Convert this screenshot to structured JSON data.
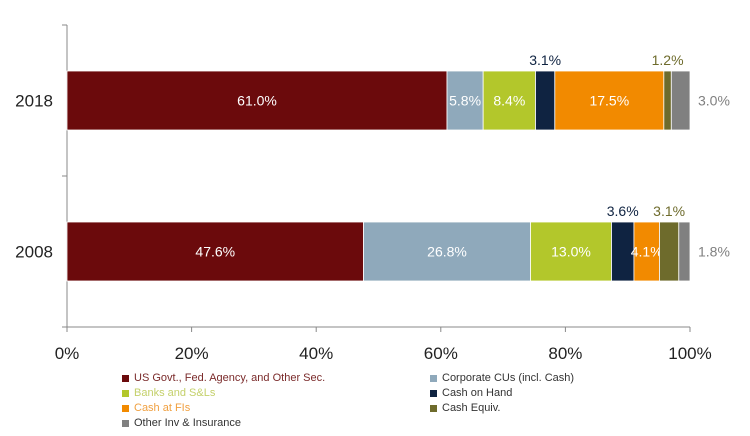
{
  "chart_data": {
    "type": "bar",
    "orientation": "horizontal",
    "stacked": true,
    "title": "",
    "xlabel": "",
    "ylabel": "",
    "xlim": [
      0,
      100
    ],
    "x_ticks": [
      "0%",
      "20%",
      "40%",
      "60%",
      "80%",
      "100%"
    ],
    "categories": [
      "2018",
      "2008"
    ],
    "series": [
      {
        "name": "US Govt., Fed. Agency, and Other Sec.",
        "color": "#6b0a0c",
        "label_color": "#6b0a0c",
        "values": [
          61.0,
          47.6
        ],
        "labels": [
          "61.0%",
          "47.6%"
        ],
        "label_pos": "inside"
      },
      {
        "name": "Corporate CUs (incl. Cash)",
        "color": "#8fa9bb",
        "label_color": "#8fa9bb",
        "values": [
          5.8,
          26.8
        ],
        "labels": [
          "5.8%",
          "26.8%"
        ],
        "label_pos": "inside"
      },
      {
        "name": "Banks and S&Ls",
        "color": "#b3c72b",
        "label_color": "#b3c72b",
        "values": [
          8.4,
          13.0
        ],
        "labels": [
          "8.4%",
          "13.0%"
        ],
        "label_pos": "inside"
      },
      {
        "name": "Cash on Hand",
        "color": "#0f2341",
        "label_color": "#0f2341",
        "values": [
          3.1,
          3.6
        ],
        "labels": [
          "3.1%",
          "3.6%"
        ],
        "label_pos": "above"
      },
      {
        "name": "Cash at FIs",
        "color": "#f28a00",
        "label_color": "#f28a00",
        "values": [
          17.5,
          4.1
        ],
        "labels": [
          "17.5%",
          "4.1%"
        ],
        "label_pos": "inside"
      },
      {
        "name": "Cash Equiv.",
        "color": "#6e6b2c",
        "label_color": "#6e6b2c",
        "values": [
          1.2,
          3.1
        ],
        "labels": [
          "1.2%",
          "3.1%"
        ],
        "label_pos": "above"
      },
      {
        "name": "Other Inv & Insurance",
        "color": "#808080",
        "label_color": "#808080",
        "values": [
          3.0,
          1.8
        ],
        "labels": [
          "3.0%",
          "1.8%"
        ],
        "label_pos": "right"
      }
    ],
    "legend_position": "bottom",
    "grid": false
  }
}
